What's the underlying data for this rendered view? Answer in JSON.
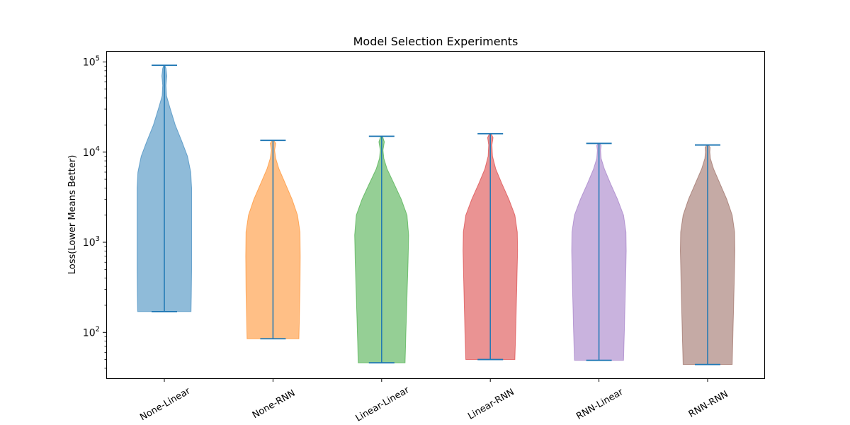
{
  "chart_data": {
    "type": "violin",
    "title": "Model Selection Experiments",
    "xlabel": "",
    "ylabel": "Loss(Lower Means Better)",
    "yscale": "log",
    "ylim": [
      31,
      130000
    ],
    "yticks": [
      {
        "value": 100,
        "base": "10",
        "exp": "2"
      },
      {
        "value": 1000,
        "base": "10",
        "exp": "3"
      },
      {
        "value": 10000,
        "base": "10",
        "exp": "4"
      },
      {
        "value": 100000,
        "base": "10",
        "exp": "5"
      }
    ],
    "grid": false,
    "categories": [
      "None-Linear",
      "None-RNN",
      "Linear-Linear",
      "Linear-RNN",
      "RNN-Linear",
      "RNN-RNN"
    ],
    "series": [
      {
        "category": "None-Linear",
        "color": "#1f77b4",
        "min": 170,
        "max": 92000,
        "profile": [
          [
            170,
            0.98
          ],
          [
            250,
            0.99
          ],
          [
            500,
            1.0
          ],
          [
            1000,
            1.0
          ],
          [
            2000,
            1.0
          ],
          [
            4000,
            1.0
          ],
          [
            6000,
            0.97
          ],
          [
            9000,
            0.85
          ],
          [
            13000,
            0.65
          ],
          [
            20000,
            0.4
          ],
          [
            30000,
            0.22
          ],
          [
            42000,
            0.08
          ],
          [
            55000,
            0.06
          ],
          [
            70000,
            0.09
          ],
          [
            85000,
            0.06
          ],
          [
            92000,
            0.02
          ]
        ]
      },
      {
        "category": "None-RNN",
        "color": "#ff7f0e",
        "min": 85,
        "max": 13500,
        "profile": [
          [
            85,
            0.95
          ],
          [
            150,
            0.97
          ],
          [
            300,
            0.99
          ],
          [
            700,
            1.0
          ],
          [
            1300,
            0.99
          ],
          [
            2000,
            0.9
          ],
          [
            3000,
            0.7
          ],
          [
            4500,
            0.45
          ],
          [
            6500,
            0.22
          ],
          [
            8500,
            0.1
          ],
          [
            10500,
            0.06
          ],
          [
            12500,
            0.1
          ],
          [
            13500,
            0.03
          ]
        ]
      },
      {
        "category": "Linear-Linear",
        "color": "#2ca02c",
        "min": 46,
        "max": 15000,
        "profile": [
          [
            46,
            0.86
          ],
          [
            80,
            0.88
          ],
          [
            200,
            0.92
          ],
          [
            600,
            0.97
          ],
          [
            1200,
            0.99
          ],
          [
            2000,
            0.93
          ],
          [
            3000,
            0.72
          ],
          [
            4500,
            0.45
          ],
          [
            6500,
            0.2
          ],
          [
            8500,
            0.08
          ],
          [
            10500,
            0.05
          ],
          [
            13000,
            0.1
          ],
          [
            15000,
            0.03
          ]
        ]
      },
      {
        "category": "Linear-RNN",
        "color": "#d62728",
        "min": 50,
        "max": 16000,
        "profile": [
          [
            50,
            0.9
          ],
          [
            100,
            0.93
          ],
          [
            300,
            0.97
          ],
          [
            800,
            1.0
          ],
          [
            1300,
            0.99
          ],
          [
            2000,
            0.9
          ],
          [
            3000,
            0.68
          ],
          [
            4500,
            0.42
          ],
          [
            6500,
            0.2
          ],
          [
            9000,
            0.08
          ],
          [
            12000,
            0.06
          ],
          [
            14500,
            0.1
          ],
          [
            16000,
            0.03
          ]
        ]
      },
      {
        "category": "RNN-Linear",
        "color": "#9467bd",
        "min": 49,
        "max": 12500,
        "profile": [
          [
            49,
            0.9
          ],
          [
            100,
            0.93
          ],
          [
            300,
            0.97
          ],
          [
            800,
            1.0
          ],
          [
            1300,
            0.99
          ],
          [
            2000,
            0.9
          ],
          [
            3000,
            0.68
          ],
          [
            4500,
            0.42
          ],
          [
            6500,
            0.2
          ],
          [
            8500,
            0.08
          ],
          [
            10500,
            0.06
          ],
          [
            11800,
            0.08
          ],
          [
            12500,
            0.03
          ]
        ]
      },
      {
        "category": "RNN-RNN",
        "color": "#8c564b",
        "min": 44,
        "max": 12000,
        "profile": [
          [
            44,
            0.9
          ],
          [
            100,
            0.93
          ],
          [
            300,
            0.97
          ],
          [
            800,
            1.0
          ],
          [
            1300,
            0.99
          ],
          [
            2000,
            0.9
          ],
          [
            3000,
            0.7
          ],
          [
            4500,
            0.45
          ],
          [
            6500,
            0.22
          ],
          [
            8500,
            0.1
          ],
          [
            10000,
            0.08
          ],
          [
            11300,
            0.09
          ],
          [
            12000,
            0.03
          ]
        ]
      }
    ]
  }
}
